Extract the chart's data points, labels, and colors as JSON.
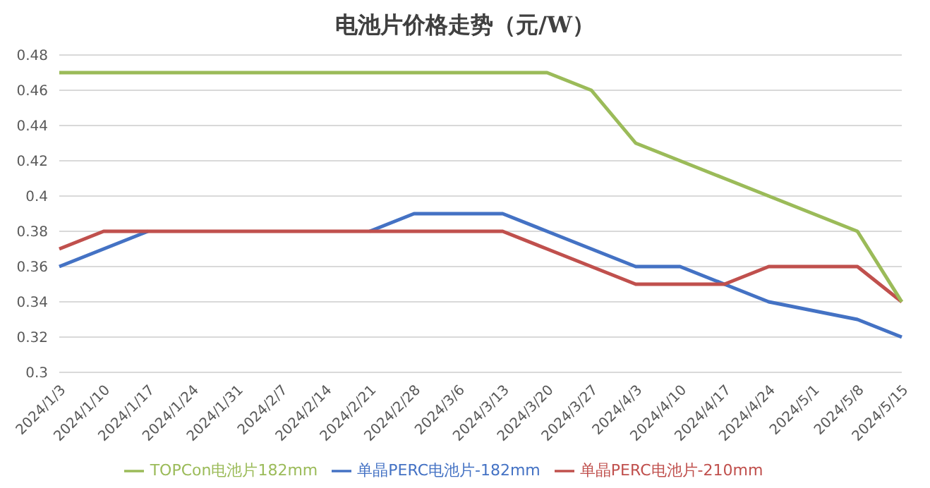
{
  "chart_data": {
    "type": "line",
    "title": "电池片价格走势（元/W）",
    "categories": [
      "2024/1/3",
      "2024/1/10",
      "2024/1/17",
      "2024/1/24",
      "2024/1/31",
      "2024/2/7",
      "2024/2/14",
      "2024/2/21",
      "2024/2/28",
      "2024/3/6",
      "2024/3/13",
      "2024/3/20",
      "2024/3/27",
      "2024/4/3",
      "2024/4/10",
      "2024/4/17",
      "2024/4/24",
      "2024/5/1",
      "2024/5/8",
      "2024/5/15"
    ],
    "series": [
      {
        "name": "单晶PERC电池片-182mm",
        "color": "#4472c4",
        "values": [
          0.36,
          0.37,
          0.38,
          null,
          null,
          null,
          null,
          0.38,
          0.39,
          0.39,
          0.39,
          0.38,
          0.37,
          0.36,
          0.36,
          0.35,
          0.34,
          0.335,
          0.33,
          0.32
        ]
      },
      {
        "name": "单晶PERC电池片-210mm",
        "color": "#c0504d",
        "values": [
          0.37,
          0.38,
          0.38,
          0.38,
          0.38,
          0.38,
          0.38,
          0.38,
          0.38,
          0.38,
          0.38,
          0.37,
          0.36,
          0.35,
          0.35,
          0.35,
          0.36,
          0.36,
          0.36,
          0.34
        ]
      },
      {
        "name": "TOPCon电池片182mm",
        "color": "#9bbb59",
        "values": [
          0.47,
          0.47,
          0.47,
          0.47,
          0.47,
          0.47,
          0.47,
          0.47,
          0.47,
          0.47,
          0.47,
          0.47,
          0.46,
          0.43,
          0.42,
          0.41,
          0.4,
          0.39,
          0.38,
          0.34
        ]
      }
    ],
    "ylim": [
      0.3,
      0.48
    ],
    "yticks": [
      0.3,
      0.32,
      0.34,
      0.36,
      0.38,
      0.4,
      0.42,
      0.44,
      0.46,
      0.48
    ],
    "grid": "y",
    "legend": "bottom",
    "marker": "none",
    "line_style": "solid"
  }
}
